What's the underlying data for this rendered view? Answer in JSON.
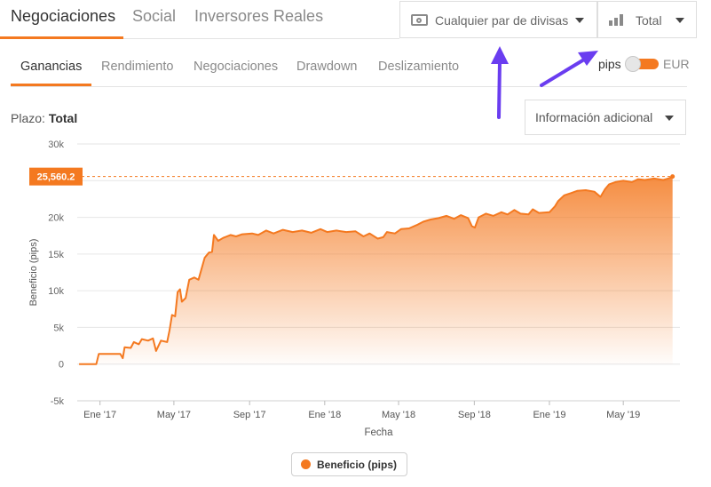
{
  "top_tabs": [
    {
      "label": "Negociaciones",
      "active": true
    },
    {
      "label": "Social",
      "active": false
    },
    {
      "label": "Inversores Reales",
      "active": false
    }
  ],
  "pair_dropdown": {
    "label": "Cualquier par de divisas",
    "icon": "money-icon"
  },
  "total_dropdown": {
    "label": "Total",
    "icon": "bar-chart-icon"
  },
  "sub_tabs": [
    {
      "label": "Ganancias",
      "active": true
    },
    {
      "label": "Rendimiento",
      "active": false
    },
    {
      "label": "Negociaciones",
      "active": false
    },
    {
      "label": "Drawdown",
      "active": false
    },
    {
      "label": "Deslizamiento",
      "active": false
    }
  ],
  "units_toggle": {
    "left_label": "pips",
    "right_label": "EUR",
    "selected": "pips"
  },
  "plazo": {
    "label": "Plazo:",
    "value": "Total"
  },
  "info_dropdown": {
    "label": "Información adicional"
  },
  "colors": {
    "accent": "#f47920",
    "annotation_arrow": "#6a3df0"
  },
  "chart_data": {
    "type": "area",
    "title": "",
    "xlabel": "Fecha",
    "ylabel": "Beneficio (pips)",
    "ylim": [
      -5000,
      30000
    ],
    "y_ticks": [
      -5000,
      0,
      5000,
      10000,
      15000,
      20000,
      25000,
      30000
    ],
    "y_tick_labels": [
      "-5k",
      "0",
      "5k",
      "10k",
      "15k",
      "20k",
      "25k",
      "30k"
    ],
    "x_ticks": [
      "2017-01-01",
      "2017-05-01",
      "2017-09-01",
      "2018-01-01",
      "2018-05-01",
      "2018-09-01",
      "2019-01-01",
      "2019-05-01"
    ],
    "x_tick_labels": [
      "Ene '17",
      "May '17",
      "Sep '17",
      "Ene '18",
      "May '18",
      "Sep '18",
      "Ene '19",
      "May '19"
    ],
    "xlim": [
      "2016-11-25",
      "2019-08-01"
    ],
    "current_value": 25560.2,
    "current_value_label": "25,560.2",
    "grid": "horizontal",
    "legend": {
      "position": "bottom-center"
    },
    "series": [
      {
        "name": "Beneficio (pips)",
        "color": "#f47920",
        "points": [
          [
            "2016-11-28",
            0
          ],
          [
            "2016-12-15",
            0
          ],
          [
            "2016-12-26",
            0
          ],
          [
            "2016-12-30",
            1400
          ],
          [
            "2017-01-20",
            1400
          ],
          [
            "2017-02-03",
            1400
          ],
          [
            "2017-02-07",
            800
          ],
          [
            "2017-02-10",
            2300
          ],
          [
            "2017-02-20",
            2200
          ],
          [
            "2017-02-25",
            3000
          ],
          [
            "2017-03-05",
            2700
          ],
          [
            "2017-03-10",
            3400
          ],
          [
            "2017-03-20",
            3200
          ],
          [
            "2017-03-28",
            3500
          ],
          [
            "2017-04-02",
            1800
          ],
          [
            "2017-04-10",
            3200
          ],
          [
            "2017-04-20",
            3000
          ],
          [
            "2017-04-24",
            4600
          ],
          [
            "2017-04-28",
            6700
          ],
          [
            "2017-05-03",
            6500
          ],
          [
            "2017-05-07",
            9800
          ],
          [
            "2017-05-11",
            10200
          ],
          [
            "2017-05-14",
            8500
          ],
          [
            "2017-05-20",
            9000
          ],
          [
            "2017-05-26",
            11500
          ],
          [
            "2017-06-03",
            11800
          ],
          [
            "2017-06-10",
            11500
          ],
          [
            "2017-06-20",
            14500
          ],
          [
            "2017-06-27",
            15200
          ],
          [
            "2017-07-02",
            15300
          ],
          [
            "2017-07-05",
            17600
          ],
          [
            "2017-07-12",
            16800
          ],
          [
            "2017-07-20",
            17200
          ],
          [
            "2017-08-01",
            17600
          ],
          [
            "2017-08-10",
            17400
          ],
          [
            "2017-08-20",
            17700
          ],
          [
            "2017-09-05",
            17800
          ],
          [
            "2017-09-15",
            17600
          ],
          [
            "2017-09-28",
            18200
          ],
          [
            "2017-10-10",
            17800
          ],
          [
            "2017-10-25",
            18300
          ],
          [
            "2017-11-10",
            18000
          ],
          [
            "2017-11-25",
            18200
          ],
          [
            "2017-12-10",
            17900
          ],
          [
            "2017-12-25",
            18400
          ],
          [
            "2018-01-05",
            18000
          ],
          [
            "2018-01-20",
            18200
          ],
          [
            "2018-02-05",
            18000
          ],
          [
            "2018-02-20",
            18100
          ],
          [
            "2018-03-05",
            17400
          ],
          [
            "2018-03-15",
            17800
          ],
          [
            "2018-03-28",
            17100
          ],
          [
            "2018-04-06",
            17300
          ],
          [
            "2018-04-12",
            18000
          ],
          [
            "2018-04-25",
            17800
          ],
          [
            "2018-05-05",
            18400
          ],
          [
            "2018-05-18",
            18500
          ],
          [
            "2018-06-01",
            19000
          ],
          [
            "2018-06-10",
            19400
          ],
          [
            "2018-06-22",
            19700
          ],
          [
            "2018-07-05",
            19900
          ],
          [
            "2018-07-18",
            20200
          ],
          [
            "2018-07-30",
            19800
          ],
          [
            "2018-08-10",
            20300
          ],
          [
            "2018-08-22",
            19900
          ],
          [
            "2018-08-28",
            18800
          ],
          [
            "2018-09-02",
            18600
          ],
          [
            "2018-09-08",
            20000
          ],
          [
            "2018-09-20",
            20500
          ],
          [
            "2018-10-02",
            20200
          ],
          [
            "2018-10-15",
            20700
          ],
          [
            "2018-10-25",
            20400
          ],
          [
            "2018-11-05",
            21000
          ],
          [
            "2018-11-15",
            20500
          ],
          [
            "2018-11-28",
            20400
          ],
          [
            "2018-12-05",
            21100
          ],
          [
            "2018-12-15",
            20600
          ],
          [
            "2019-01-01",
            20700
          ],
          [
            "2019-01-10",
            21500
          ],
          [
            "2019-01-15",
            22200
          ],
          [
            "2019-01-25",
            23000
          ],
          [
            "2019-02-05",
            23300
          ],
          [
            "2019-02-15",
            23600
          ],
          [
            "2019-03-01",
            23700
          ],
          [
            "2019-03-15",
            23500
          ],
          [
            "2019-03-25",
            22800
          ],
          [
            "2019-04-01",
            23800
          ],
          [
            "2019-04-08",
            24500
          ],
          [
            "2019-04-18",
            24800
          ],
          [
            "2019-05-01",
            25000
          ],
          [
            "2019-05-15",
            24800
          ],
          [
            "2019-05-25",
            25200
          ],
          [
            "2019-06-05",
            25100
          ],
          [
            "2019-06-20",
            25300
          ],
          [
            "2019-07-05",
            25100
          ],
          [
            "2019-07-15",
            25350
          ],
          [
            "2019-07-20",
            25560.2
          ]
        ]
      }
    ]
  }
}
